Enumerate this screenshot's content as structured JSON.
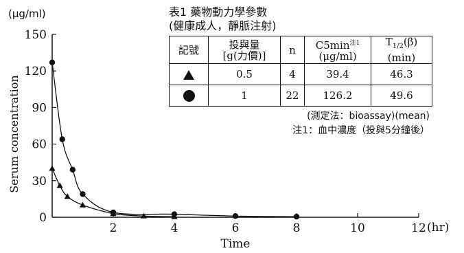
{
  "chart_data": {
    "type": "line",
    "xlabel": "Time",
    "ylabel": "Serum concentration",
    "x_unit": "(hr)",
    "y_unit": "(μg/ml)",
    "xlim": [
      0,
      12
    ],
    "ylim": [
      0,
      150
    ],
    "x_ticks": [
      2,
      4,
      6,
      8,
      10,
      12
    ],
    "y_ticks": [
      0,
      30,
      60,
      90,
      120,
      150
    ],
    "grid": false,
    "series": [
      {
        "marker": "triangle",
        "points": [
          [
            0,
            40
          ],
          [
            0.25,
            26
          ],
          [
            0.5,
            17
          ],
          [
            1,
            10
          ],
          [
            2,
            3
          ],
          [
            3,
            1
          ],
          [
            4,
            0.5
          ]
        ]
      },
      {
        "marker": "circle",
        "points": [
          [
            0,
            127
          ],
          [
            0.33,
            64
          ],
          [
            0.67,
            39
          ],
          [
            1,
            19
          ],
          [
            2,
            4
          ],
          [
            4,
            2.5
          ],
          [
            6,
            1
          ],
          [
            8,
            0.5
          ]
        ]
      }
    ]
  },
  "table": {
    "title_line1": "表1 藥物動力學參數",
    "title_line2": "(健康成人，靜脈注射)",
    "headers": {
      "symbol": "記號",
      "dose_line1": "投與量",
      "dose_line2": "[g(力價)]",
      "n": "n",
      "c5_main": "C5min",
      "c5_sup": "注1",
      "c5_unit": "(μg/ml)",
      "thalf_main": "T",
      "thalf_sub": "1/2",
      "thalf_rest": "(β)",
      "thalf_unit": "(min)"
    },
    "rows": [
      {
        "symbol": "triangle",
        "dose": "0.5",
        "n": "4",
        "c5min": "39.4",
        "thalf": "46.3"
      },
      {
        "symbol": "circle",
        "dose": "1",
        "n": "22",
        "c5min": "126.2",
        "thalf": "49.6"
      }
    ],
    "method_note": "(測定法：bioassay)(mean)",
    "footnote": "注1：血中濃度（投與5分鐘後）"
  }
}
